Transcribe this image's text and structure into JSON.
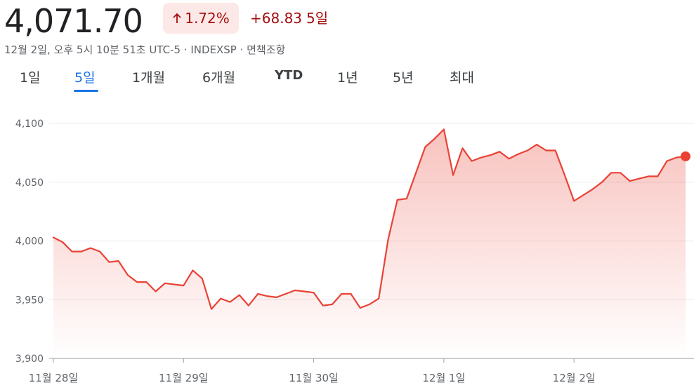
{
  "quote": {
    "price": "4,071.70",
    "change_pct": "1.72%",
    "change_abs": "+68.83",
    "change_period": "5일",
    "subline": "12월 2일, 오후 5시 10분 51초 UTC-5 · INDEXSP · 면책조항",
    "colors": {
      "down_red": "#a50e0e",
      "badge_bg": "#fce8e6",
      "line": "#e94235",
      "accent": "#1a73e8"
    }
  },
  "tabs": [
    {
      "label": "1일",
      "active": false
    },
    {
      "label": "5일",
      "active": true
    },
    {
      "label": "1개월",
      "active": false
    },
    {
      "label": "6개월",
      "active": false
    },
    {
      "label": "YTD",
      "active": false
    },
    {
      "label": "1년",
      "active": false
    },
    {
      "label": "5년",
      "active": false
    },
    {
      "label": "최대",
      "active": false
    }
  ],
  "chart_data": {
    "type": "area",
    "ylim": [
      3900,
      4100
    ],
    "y_ticks": [
      {
        "value": 4100,
        "label": "4,100"
      },
      {
        "value": 4050,
        "label": "4,050"
      },
      {
        "value": 4000,
        "label": "4,000"
      },
      {
        "value": 3950,
        "label": "3,950"
      },
      {
        "value": 3900,
        "label": "3,900"
      }
    ],
    "x_ticks": [
      {
        "index": 0,
        "label": "11월 28일"
      },
      {
        "index": 14,
        "label": "11월 29일"
      },
      {
        "index": 28,
        "label": "11월 30일"
      },
      {
        "index": 42,
        "label": "12월 1일"
      },
      {
        "index": 56,
        "label": "12월 2일"
      }
    ],
    "grid": true,
    "values": [
      4003,
      3999,
      3991,
      3991,
      3994,
      3991,
      3982,
      3983,
      3971,
      3965,
      3965,
      3957,
      3964,
      3963,
      3962,
      3975,
      3968,
      3942,
      3951,
      3948,
      3954,
      3945,
      3955,
      3953,
      3952,
      3955,
      3958,
      3957,
      3956,
      3945,
      3946,
      3955,
      3955,
      3943,
      3946,
      3951,
      4001,
      4035,
      4036,
      4058,
      4080,
      4087,
      4095,
      4056,
      4079,
      4068,
      4071,
      4073,
      4076,
      4070,
      4074,
      4077,
      4082,
      4077,
      4077,
      4056,
      4034,
      4039,
      4044,
      4050,
      4058,
      4058,
      4051,
      4053,
      4055,
      4055,
      4068,
      4071,
      4072
    ]
  }
}
